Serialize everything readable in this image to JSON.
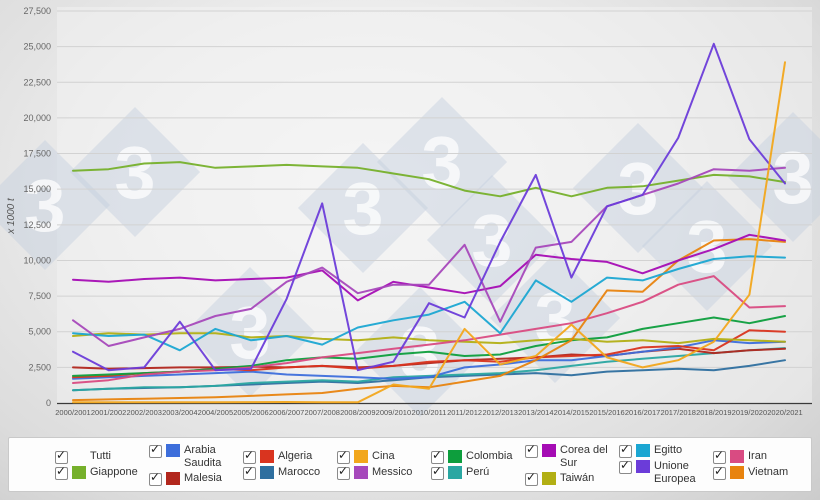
{
  "watermark": {
    "glyph": "3"
  },
  "ui": {
    "checkbox_glyph": "✓"
  },
  "chart_data": {
    "type": "line",
    "title": "",
    "xlabel": "",
    "ylabel": "x 1000 t",
    "ylim": [
      0,
      27500
    ],
    "ytick_step": 2500,
    "grid": "horizontal",
    "legend_position": "bottom",
    "categories": [
      "2000/2001",
      "2001/2002",
      "2002/2003",
      "2003/2004",
      "2004/2005",
      "2005/2006",
      "2006/2007",
      "2007/2008",
      "2008/2009",
      "2009/2010",
      "2010/2011",
      "2011/2012",
      "2012/2013",
      "2013/2014",
      "2014/2015",
      "2015/2016",
      "2016/2017",
      "2017/2018",
      "2018/2019",
      "2019/2020",
      "2020/2021"
    ],
    "series": [
      {
        "name": "Marocco",
        "color": "#2e6f9f",
        "values": [
          900,
          1000,
          1050,
          1100,
          1200,
          1300,
          1400,
          1500,
          1400,
          1600,
          1800,
          1900,
          2000,
          2100,
          1950,
          2200,
          2300,
          2400,
          2300,
          2600,
          3000
        ]
      },
      {
        "name": "Perú",
        "color": "#2aa7a2",
        "values": [
          900,
          1000,
          1100,
          1100,
          1200,
          1400,
          1500,
          1600,
          1500,
          1800,
          1900,
          2000,
          2100,
          2300,
          2600,
          2900,
          3100,
          3300,
          3500,
          3700,
          3850
        ]
      },
      {
        "name": "Malesia",
        "color": "#b2271d",
        "values": [
          2500,
          2400,
          2450,
          2500,
          2500,
          2550,
          2500,
          2600,
          2500,
          2600,
          2800,
          3000,
          3100,
          3200,
          3400,
          3300,
          3600,
          3800,
          3500,
          3700,
          3800
        ]
      },
      {
        "name": "Arabia Saudita",
        "color": "#3d6edb",
        "values": [
          1700,
          1800,
          1900,
          2000,
          2100,
          2200,
          2000,
          1900,
          1800,
          1700,
          1800,
          2500,
          2700,
          3000,
          3000,
          3300,
          3600,
          3900,
          4400,
          4200,
          4300
        ]
      },
      {
        "name": "Algeria",
        "color": "#d9341f",
        "values": [
          1800,
          1900,
          2100,
          2200,
          2400,
          2300,
          2500,
          2600,
          2400,
          2600,
          2900,
          3000,
          2900,
          3200,
          3300,
          3400,
          3900,
          4000,
          3700,
          5100,
          5000
        ]
      },
      {
        "name": "Colombia",
        "color": "#0d9e3d",
        "values": [
          1900,
          2000,
          2100,
          2200,
          2400,
          2600,
          3000,
          3200,
          3100,
          3400,
          3600,
          3300,
          3400,
          4000,
          4400,
          4600,
          5200,
          5600,
          6000,
          5600,
          6100
        ]
      },
      {
        "name": "Taiwán",
        "color": "#b2af14",
        "values": [
          4700,
          4900,
          4800,
          4900,
          4900,
          4600,
          4700,
          4500,
          4400,
          4600,
          4400,
          4300,
          4200,
          4400,
          4500,
          4300,
          4400,
          4200,
          4500,
          4400,
          4300
        ]
      },
      {
        "name": "Iran",
        "color": "#d94b82",
        "values": [
          1400,
          1600,
          2000,
          2200,
          2300,
          2500,
          2800,
          3200,
          3500,
          3800,
          4100,
          4400,
          4800,
          5200,
          5600,
          6300,
          7100,
          8300,
          8900,
          6700,
          6800
        ]
      },
      {
        "name": "Vietnam",
        "color": "#e8830e",
        "values": [
          200,
          250,
          300,
          350,
          400,
          500,
          600,
          700,
          1000,
          1200,
          1100,
          1500,
          1900,
          3000,
          4400,
          7900,
          7800,
          10000,
          11400,
          11500,
          11300
        ]
      },
      {
        "name": "Egitto",
        "color": "#1ba6d2",
        "values": [
          4900,
          4700,
          4800,
          3700,
          5200,
          4400,
          4700,
          4100,
          5300,
          5800,
          6200,
          7100,
          4900,
          8600,
          7100,
          8800,
          8600,
          9400,
          10100,
          10300,
          10200
        ]
      },
      {
        "name": "Corea del Sur",
        "color": "#a50cb4",
        "values": [
          8650,
          8500,
          8700,
          8800,
          8600,
          8700,
          8800,
          9300,
          7200,
          8500,
          8100,
          7700,
          8200,
          10400,
          10100,
          9900,
          9100,
          10000,
          10800,
          11800,
          11400
        ]
      },
      {
        "name": "Giappone",
        "color": "#76b02b",
        "values": [
          16300,
          16400,
          16800,
          16900,
          16500,
          16600,
          16700,
          16600,
          16500,
          16100,
          15700,
          14900,
          14500,
          15100,
          14500,
          15100,
          15200,
          15600,
          16000,
          15900,
          15500
        ]
      },
      {
        "name": "Messico",
        "color": "#a648bb",
        "values": [
          5800,
          4000,
          4600,
          5200,
          6100,
          6600,
          8500,
          9500,
          7700,
          8300,
          8300,
          11100,
          5700,
          10900,
          11300,
          13800,
          14600,
          15400,
          16400,
          16300,
          16500
        ]
      },
      {
        "name": "Unione Europea",
        "color": "#6b3cd9",
        "values": [
          3600,
          2300,
          2500,
          5700,
          2300,
          2400,
          7300,
          14000,
          2300,
          2900,
          7000,
          6000,
          11300,
          16000,
          8800,
          13800,
          14600,
          18600,
          25200,
          18500,
          15400
        ]
      },
      {
        "name": "Cina",
        "color": "#f2a71c",
        "values": [
          50,
          50,
          50,
          50,
          50,
          60,
          70,
          50,
          50,
          1300,
          1000,
          5200,
          2700,
          3300,
          5500,
          3200,
          2500,
          3000,
          4300,
          7600,
          23900
        ]
      }
    ]
  },
  "legend": {
    "columns": [
      [
        {
          "label": "Tutti",
          "color": null,
          "checked": true
        },
        {
          "label": "Giappone",
          "color": "#76b02b",
          "checked": true
        }
      ],
      [
        {
          "label": "Arabia Saudita",
          "color": "#3d6edb",
          "checked": true
        },
        {
          "label": "Malesia",
          "color": "#b2271d",
          "checked": true
        }
      ],
      [
        {
          "label": "Algeria",
          "color": "#d9341f",
          "checked": true
        },
        {
          "label": "Marocco",
          "color": "#2e6f9f",
          "checked": true
        }
      ],
      [
        {
          "label": "Cina",
          "color": "#f2a71c",
          "checked": true
        },
        {
          "label": "Messico",
          "color": "#a648bb",
          "checked": true
        }
      ],
      [
        {
          "label": "Colombia",
          "color": "#0d9e3d",
          "checked": true
        },
        {
          "label": "Perú",
          "color": "#2aa7a2",
          "checked": true
        }
      ],
      [
        {
          "label": "Corea del Sur",
          "color": "#a50cb4",
          "checked": true
        },
        {
          "label": "Taiwán",
          "color": "#b2af14",
          "checked": true
        }
      ],
      [
        {
          "label": "Egitto",
          "color": "#1ba6d2",
          "checked": true
        },
        {
          "label": "Unione Europea",
          "color": "#6b3cd9",
          "checked": true
        }
      ],
      [
        {
          "label": "Iran",
          "color": "#d94b82",
          "checked": true
        },
        {
          "label": "Vietnam",
          "color": "#e8830e",
          "checked": true
        }
      ]
    ]
  }
}
